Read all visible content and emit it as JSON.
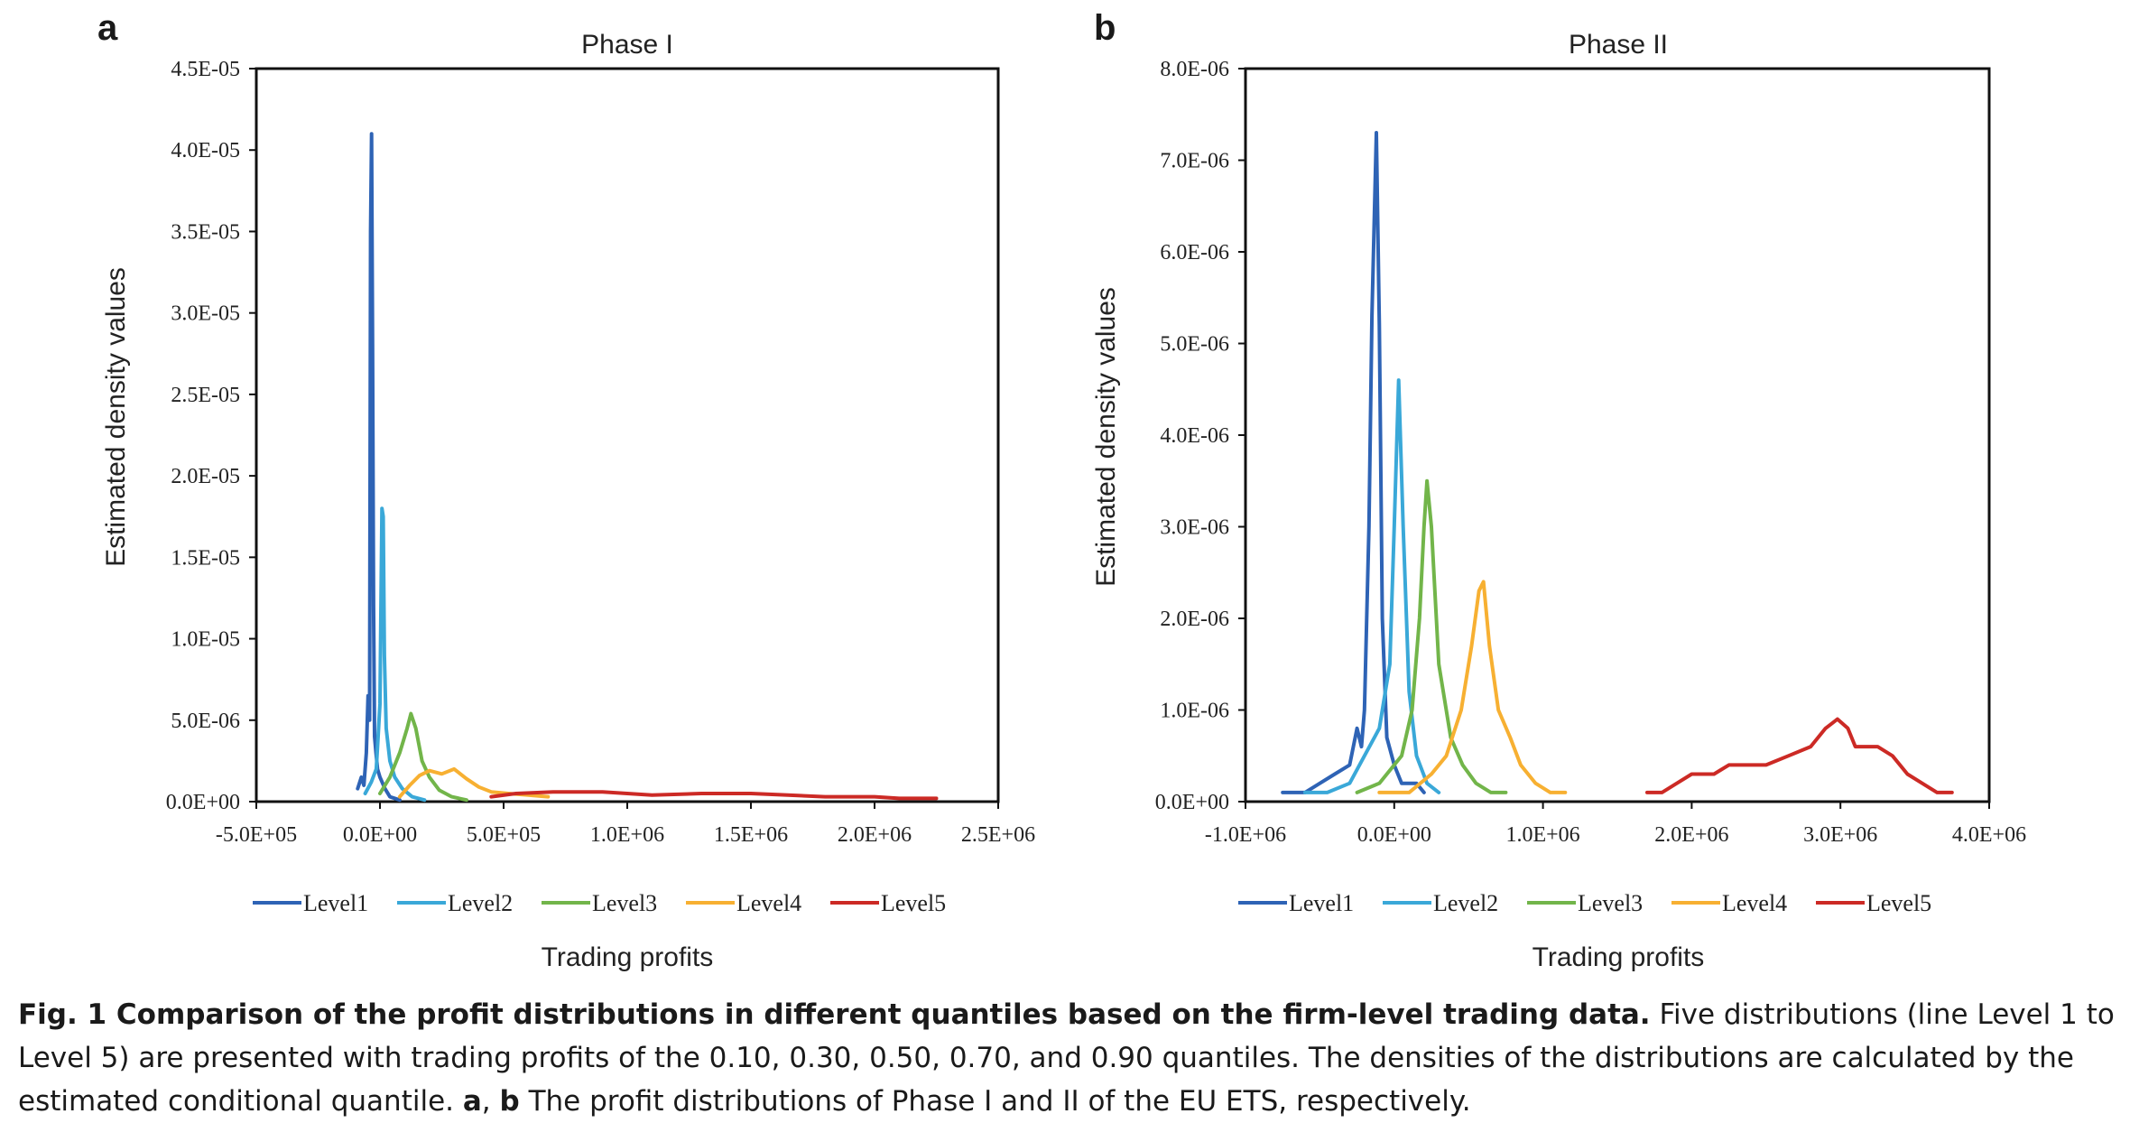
{
  "chart_data": [
    {
      "type": "line",
      "panel": "a",
      "title": "Phase I",
      "xlabel": "Trading profits",
      "ylabel": "Estimated density values",
      "xlim": [
        -500000,
        2500000
      ],
      "ylim": [
        0,
        4.5e-05
      ],
      "x_ticks": [
        -500000,
        0,
        500000,
        1000000,
        1500000,
        2000000,
        2500000
      ],
      "x_tick_labels": [
        "-5.0E+05",
        "0.0E+00",
        "5.0E+05",
        "1.0E+06",
        "1.5E+06",
        "2.0E+06",
        "2.5E+06"
      ],
      "y_ticks": [
        0,
        5e-06,
        1e-05,
        1.5e-05,
        2e-05,
        2.5e-05,
        3e-05,
        3.5e-05,
        4e-05,
        4.5e-05
      ],
      "y_tick_labels": [
        "0.0E+00",
        "5.0E-06",
        "1.0E-05",
        "1.5E-05",
        "2.0E-05",
        "2.5E-05",
        "3.0E-05",
        "3.5E-05",
        "4.0E-05",
        "4.5E-05"
      ],
      "grid": false,
      "legend": "bottom",
      "series": [
        {
          "name": "Level1",
          "color": "#2e63b5",
          "points": [
            [
              -90000,
              8e-07
            ],
            [
              -75000,
              1.5e-06
            ],
            [
              -65000,
              1e-06
            ],
            [
              -55000,
              3e-06
            ],
            [
              -48000,
              6.5e-06
            ],
            [
              -42000,
              5e-06
            ],
            [
              -38000,
              3.5e-05
            ],
            [
              -34000,
              4.1e-05
            ],
            [
              -30000,
              2.8e-05
            ],
            [
              -26000,
              1.2e-05
            ],
            [
              -22000,
              4e-06
            ],
            [
              -16000,
              3e-06
            ],
            [
              -10000,
              2e-06
            ],
            [
              0,
              1.5e-06
            ],
            [
              20000,
              8e-07
            ],
            [
              40000,
              3e-07
            ],
            [
              80000,
              1e-07
            ]
          ]
        },
        {
          "name": "Level2",
          "color": "#3aa8d8",
          "points": [
            [
              -60000,
              5e-07
            ],
            [
              -35000,
              1.2e-06
            ],
            [
              -15000,
              2e-06
            ],
            [
              0,
              6e-06
            ],
            [
              8000,
              1.8e-05
            ],
            [
              13000,
              1.75e-05
            ],
            [
              18000,
              9e-06
            ],
            [
              25000,
              4.5e-06
            ],
            [
              40000,
              2.5e-06
            ],
            [
              60000,
              1.5e-06
            ],
            [
              90000,
              8e-07
            ],
            [
              130000,
              3e-07
            ],
            [
              180000,
              1e-07
            ]
          ]
        },
        {
          "name": "Level3",
          "color": "#72b54a",
          "points": [
            [
              0,
              5e-07
            ],
            [
              40000,
              1.5e-06
            ],
            [
              80000,
              3e-06
            ],
            [
              110000,
              4.5e-06
            ],
            [
              125000,
              5.4e-06
            ],
            [
              145000,
              4.5e-06
            ],
            [
              170000,
              2.5e-06
            ],
            [
              200000,
              1.5e-06
            ],
            [
              240000,
              7e-07
            ],
            [
              290000,
              3e-07
            ],
            [
              350000,
              1e-07
            ]
          ]
        },
        {
          "name": "Level4",
          "color": "#f7b032",
          "points": [
            [
              80000,
              3e-07
            ],
            [
              120000,
              1e-06
            ],
            [
              160000,
              1.6e-06
            ],
            [
              200000,
              1.9e-06
            ],
            [
              250000,
              1.7e-06
            ],
            [
              300000,
              2e-06
            ],
            [
              350000,
              1.4e-06
            ],
            [
              400000,
              9e-07
            ],
            [
              450000,
              6e-07
            ],
            [
              520000,
              5e-07
            ],
            [
              600000,
              4e-07
            ],
            [
              680000,
              3e-07
            ]
          ]
        },
        {
          "name": "Level5",
          "color": "#cc2a25",
          "points": [
            [
              450000,
              3e-07
            ],
            [
              550000,
              5e-07
            ],
            [
              700000,
              6e-07
            ],
            [
              900000,
              6e-07
            ],
            [
              1100000,
              4e-07
            ],
            [
              1300000,
              5e-07
            ],
            [
              1500000,
              5e-07
            ],
            [
              1650000,
              4e-07
            ],
            [
              1800000,
              3e-07
            ],
            [
              2000000,
              3e-07
            ],
            [
              2100000,
              2e-07
            ],
            [
              2250000,
              2e-07
            ]
          ]
        }
      ]
    },
    {
      "type": "line",
      "panel": "b",
      "title": "Phase II",
      "xlabel": "Trading profits",
      "ylabel": "Estimated density values",
      "xlim": [
        -1000000,
        4000000
      ],
      "ylim": [
        0,
        8e-06
      ],
      "x_ticks": [
        -1000000,
        0,
        1000000,
        2000000,
        3000000,
        4000000
      ],
      "x_tick_labels": [
        "-1.0E+06",
        "0.0E+00",
        "1.0E+06",
        "2.0E+06",
        "3.0E+06",
        "4.0E+06"
      ],
      "y_ticks": [
        0,
        1e-06,
        2e-06,
        3e-06,
        4e-06,
        5e-06,
        6e-06,
        7e-06,
        8e-06
      ],
      "y_tick_labels": [
        "0.0E+00",
        "1.0E-06",
        "2.0E-06",
        "3.0E-06",
        "4.0E-06",
        "5.0E-06",
        "6.0E-06",
        "7.0E-06",
        "8.0E-06"
      ],
      "grid": false,
      "legend": "bottom",
      "series": [
        {
          "name": "Level1",
          "color": "#2e63b5",
          "points": [
            [
              -750000,
              1e-07
            ],
            [
              -600000,
              1e-07
            ],
            [
              -500000,
              2e-07
            ],
            [
              -400000,
              3e-07
            ],
            [
              -300000,
              4e-07
            ],
            [
              -250000,
              8e-07
            ],
            [
              -220000,
              6e-07
            ],
            [
              -200000,
              1e-06
            ],
            [
              -170000,
              3e-06
            ],
            [
              -150000,
              5.3e-06
            ],
            [
              -120000,
              7.3e-06
            ],
            [
              -100000,
              5.2e-06
            ],
            [
              -80000,
              2e-06
            ],
            [
              -50000,
              7e-07
            ],
            [
              0,
              4e-07
            ],
            [
              50000,
              2e-07
            ],
            [
              150000,
              2e-07
            ],
            [
              200000,
              1e-07
            ]
          ]
        },
        {
          "name": "Level2",
          "color": "#3aa8d8",
          "points": [
            [
              -600000,
              1e-07
            ],
            [
              -450000,
              1e-07
            ],
            [
              -300000,
              2e-07
            ],
            [
              -200000,
              5e-07
            ],
            [
              -100000,
              8e-07
            ],
            [
              -30000,
              1.5e-06
            ],
            [
              0,
              3e-06
            ],
            [
              30000,
              4.6e-06
            ],
            [
              60000,
              3e-06
            ],
            [
              100000,
              1.2e-06
            ],
            [
              150000,
              5e-07
            ],
            [
              220000,
              2e-07
            ],
            [
              300000,
              1e-07
            ]
          ]
        },
        {
          "name": "Level3",
          "color": "#72b54a",
          "points": [
            [
              -250000,
              1e-07
            ],
            [
              -100000,
              2e-07
            ],
            [
              50000,
              5e-07
            ],
            [
              120000,
              1e-06
            ],
            [
              170000,
              2e-06
            ],
            [
              200000,
              3e-06
            ],
            [
              220000,
              3.5e-06
            ],
            [
              250000,
              3e-06
            ],
            [
              300000,
              1.5e-06
            ],
            [
              380000,
              7e-07
            ],
            [
              460000,
              4e-07
            ],
            [
              550000,
              2e-07
            ],
            [
              650000,
              1e-07
            ],
            [
              750000,
              1e-07
            ]
          ]
        },
        {
          "name": "Level4",
          "color": "#f7b032",
          "points": [
            [
              -100000,
              1e-07
            ],
            [
              100000,
              1e-07
            ],
            [
              250000,
              3e-07
            ],
            [
              350000,
              5e-07
            ],
            [
              450000,
              1e-06
            ],
            [
              520000,
              1.7e-06
            ],
            [
              570000,
              2.3e-06
            ],
            [
              600000,
              2.4e-06
            ],
            [
              640000,
              1.7e-06
            ],
            [
              700000,
              1e-06
            ],
            [
              780000,
              7e-07
            ],
            [
              850000,
              4e-07
            ],
            [
              950000,
              2e-07
            ],
            [
              1050000,
              1e-07
            ],
            [
              1150000,
              1e-07
            ]
          ]
        },
        {
          "name": "Level5",
          "color": "#cc2a25",
          "points": [
            [
              1700000,
              1e-07
            ],
            [
              1800000,
              1e-07
            ],
            [
              1900000,
              2e-07
            ],
            [
              2000000,
              3e-07
            ],
            [
              2150000,
              3e-07
            ],
            [
              2250000,
              4e-07
            ],
            [
              2400000,
              4e-07
            ],
            [
              2500000,
              4e-07
            ],
            [
              2650000,
              5e-07
            ],
            [
              2800000,
              6e-07
            ],
            [
              2900000,
              8e-07
            ],
            [
              2980000,
              9e-07
            ],
            [
              3050000,
              8e-07
            ],
            [
              3100000,
              6e-07
            ],
            [
              3250000,
              6e-07
            ],
            [
              3350000,
              5e-07
            ],
            [
              3450000,
              3e-07
            ],
            [
              3550000,
              2e-07
            ],
            [
              3650000,
              1e-07
            ],
            [
              3750000,
              1e-07
            ]
          ]
        }
      ]
    }
  ],
  "panels": [
    {
      "letter": "a",
      "title": "Phase I",
      "ylabel": "Estimated density values",
      "xlabel": "Trading profits",
      "legend": [
        "Level1",
        "Level2",
        "Level3",
        "Level4",
        "Level5"
      ]
    },
    {
      "letter": "b",
      "title": "Phase II",
      "ylabel": "Estimated density values",
      "xlabel": "Trading profits",
      "legend": [
        "Level1",
        "Level2",
        "Level3",
        "Level4",
        "Level5"
      ]
    }
  ],
  "caption": {
    "bold": "Fig. 1 Comparison of the profit distributions in different quantiles based on the firm-level trading data.",
    "text1": " Five distributions (line Level 1 to Level 5) are presented with trading profits of the 0.10, 0.30, 0.50, 0.70, and 0.90 quantiles. The densities of the distributions are calculated by the estimated conditional quantile. ",
    "bold_a": "a",
    "sep": ", ",
    "bold_b": "b",
    "text2": " The profit distributions of Phase I and II of the EU ETS, respectively."
  }
}
